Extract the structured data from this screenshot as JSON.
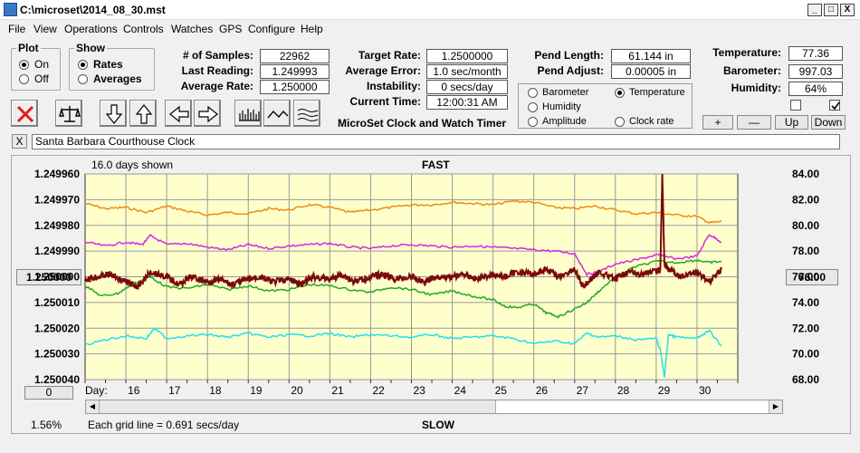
{
  "window": {
    "title": "C:\\microset\\2014_08_30.mst",
    "min": "_",
    "max": "□",
    "close": "X"
  },
  "menu": [
    "File",
    "View",
    "Operations",
    "Controls",
    "Watches",
    "GPS",
    "Configure",
    "Help"
  ],
  "plot_group": {
    "title": "Plot",
    "on": "On",
    "off": "Off",
    "selected": "On"
  },
  "show_group": {
    "title": "Show",
    "rates": "Rates",
    "averages": "Averages",
    "selected": "Rates"
  },
  "stats": {
    "samples_label": "# of Samples:",
    "samples": "22962",
    "last_reading_label": "Last Reading:",
    "last_reading": "1.249993",
    "average_rate_label": "Average Rate:",
    "average_rate": "1.250000",
    "target_rate_label": "Target Rate:",
    "target_rate": "1.2500000",
    "average_error_label": "Average Error:",
    "average_error": "1.0 sec/month",
    "instability_label": "Instability:",
    "instability": "0 secs/day",
    "current_time_label": "Current Time:",
    "current_time": "12:00:31 AM",
    "pend_length_label": "Pend Length:",
    "pend_length": "61.144 in",
    "pend_adjust_label": "Pend Adjust:",
    "pend_adjust": "0.00005 in",
    "temperature_label": "Temperature:",
    "temperature": "77.36",
    "barometer_label": "Barometer:",
    "barometer": "997.03",
    "humidity_label": "Humidity:",
    "humidity": "64%"
  },
  "app_name": "MicroSet Clock and Watch Timer",
  "sensors": {
    "barometer": "Barometer",
    "temperature": "Temperature",
    "humidity": "Humidity",
    "amplitude": "Amplitude",
    "clock_rate": "Clock rate",
    "selected": "Temperature"
  },
  "sensor_buttons": {
    "plus": "+",
    "minus": "—",
    "up": "Up",
    "down": "Down"
  },
  "checkboxes": [
    {
      "checked": false
    },
    {
      "checked": true
    }
  ],
  "clock_name_close": "X",
  "clock_name": "Santa Barbara Courthouse Clock",
  "colors": {
    "plot_bg": "#ffffcc",
    "barometer": "#f08a10",
    "humidity": "#d428e6",
    "temperature": "#22a822",
    "amplitude": "#1ee0f0",
    "rate": "#7a0a0a"
  },
  "chart_info": {
    "days_shown": "16.0 days shown",
    "fast": "FAST",
    "slow": "SLOW",
    "grid_note": "Each grid line = 0.691 secs/day",
    "percent": "1.56%",
    "day_prefix": "Day:",
    "left_button": "1.250000",
    "right_button": "76.00",
    "bottom_button": "0"
  },
  "chart_data": {
    "type": "line",
    "x_label": "Day:",
    "x_ticks": [
      "16",
      "17",
      "18",
      "19",
      "20",
      "21",
      "22",
      "23",
      "24",
      "25",
      "26",
      "27",
      "28",
      "29",
      "30"
    ],
    "x_range": [
      15.0,
      31.0
    ],
    "y_left_ticks": [
      "1.249960",
      "1.249970",
      "1.249980",
      "1.249990",
      "1.250000",
      "1.250010",
      "1.250020",
      "1.250030",
      "1.250040"
    ],
    "y_left_range": [
      1.24996,
      1.25004
    ],
    "y_right_ticks": [
      "84.00",
      "82.00",
      "80.00",
      "78.00",
      "76.00",
      "74.00",
      "72.00",
      "70.00",
      "68.00"
    ],
    "y_right_range": [
      68,
      84
    ],
    "grid": true,
    "series": [
      {
        "name": "Barometer",
        "axis": "right",
        "color": "#f08a10",
        "x": [
          15,
          15.5,
          16,
          16.5,
          17,
          17.5,
          18,
          18.5,
          19,
          19.5,
          20,
          20.5,
          21,
          21.5,
          22,
          22.5,
          23,
          23.5,
          24,
          24.5,
          25,
          25.5,
          26,
          26.5,
          27,
          27.5,
          28,
          28.5,
          29,
          29.5,
          30,
          30.3,
          30.6
        ],
        "y": [
          81.7,
          81.3,
          81.4,
          81.0,
          81.5,
          81.1,
          80.8,
          81.0,
          80.9,
          81.3,
          81.2,
          81.6,
          81.4,
          81.0,
          81.2,
          81.4,
          81.6,
          81.6,
          81.8,
          81.7,
          81.6,
          81.9,
          81.8,
          81.4,
          81.3,
          81.5,
          81.2,
          80.9,
          81.0,
          80.8,
          80.7,
          80.2,
          80.3
        ]
      },
      {
        "name": "Humidity",
        "axis": "right",
        "color": "#d428e6",
        "x": [
          15,
          15.5,
          16,
          16.4,
          16.6,
          17,
          17.5,
          18,
          18.5,
          19,
          19.5,
          20,
          20.5,
          21,
          21.5,
          22,
          22.5,
          23,
          23.5,
          24,
          24.5,
          25,
          25.5,
          26,
          26.5,
          27,
          27.3,
          27.6,
          28,
          28.5,
          29,
          29.5,
          30,
          30.3,
          30.6
        ],
        "y": [
          78.7,
          78.4,
          78.7,
          78.5,
          79.2,
          78.5,
          78.6,
          78.3,
          78.1,
          78.5,
          78.2,
          78.4,
          78.5,
          78.6,
          78.3,
          78.2,
          78.4,
          78.5,
          78.4,
          78.3,
          78.4,
          78.3,
          78.2,
          78.1,
          78.0,
          77.8,
          76.2,
          76.4,
          77.0,
          77.3,
          77.7,
          77.4,
          77.6,
          79.3,
          78.7
        ]
      },
      {
        "name": "Temperature",
        "axis": "right",
        "color": "#22a822",
        "x": [
          15,
          15.4,
          15.8,
          16.2,
          16.6,
          17,
          17.5,
          18,
          18.5,
          19,
          19.5,
          20,
          20.5,
          21,
          21.5,
          22,
          22.5,
          23,
          23.5,
          24,
          24.5,
          25,
          25.3,
          25.6,
          26,
          26.3,
          26.6,
          27,
          27.3,
          27.6,
          28,
          28.5,
          29,
          29.5,
          30,
          30.3,
          30.6
        ],
        "y": [
          75.3,
          74.5,
          74.7,
          75.5,
          76.0,
          75.2,
          75.1,
          75.4,
          75.0,
          75.3,
          74.9,
          75.0,
          75.4,
          75.3,
          75.0,
          74.8,
          75.2,
          75.0,
          74.6,
          74.9,
          74.5,
          74.2,
          73.7,
          73.6,
          73.9,
          73.2,
          72.9,
          73.5,
          74.0,
          74.9,
          76.0,
          76.8,
          77.2,
          77.1,
          77.3,
          77.1,
          77.2
        ]
      },
      {
        "name": "Amplitude",
        "axis": "right",
        "color": "#1ee0f0",
        "x": [
          15,
          15.5,
          16,
          16.5,
          16.7,
          17,
          17.5,
          18,
          18.5,
          19,
          19.5,
          20,
          20.5,
          21,
          21.5,
          22,
          22.5,
          23,
          23.5,
          24,
          24.5,
          25,
          25.5,
          26,
          26.5,
          27,
          27.3,
          27.6,
          28,
          28.5,
          29,
          29.1,
          29.2,
          29.3,
          29.5,
          30,
          30.3,
          30.6
        ],
        "y": [
          70.7,
          71.1,
          71.4,
          71.2,
          72.0,
          71.2,
          71.4,
          71.5,
          71.3,
          71.6,
          71.3,
          71.5,
          71.4,
          71.6,
          71.3,
          71.5,
          71.4,
          71.3,
          71.5,
          71.2,
          71.3,
          71.4,
          71.2,
          70.8,
          71.0,
          70.8,
          71.6,
          71.3,
          71.4,
          71.1,
          71.2,
          70.3,
          68.2,
          71.5,
          71.3,
          71.2,
          71.8,
          70.6
        ]
      },
      {
        "name": "Rate",
        "axis": "left",
        "color": "#7a0a0a",
        "x": [
          15,
          15.3,
          15.6,
          16,
          16.3,
          16.6,
          17,
          17.3,
          17.6,
          18,
          18.3,
          18.6,
          19,
          19.3,
          19.6,
          20,
          20.3,
          20.6,
          21,
          21.3,
          21.6,
          22,
          22.3,
          22.6,
          23,
          23.3,
          23.6,
          24,
          24.3,
          24.6,
          25,
          25.3,
          25.6,
          26,
          26.3,
          26.6,
          27,
          27.2,
          27.4,
          27.6,
          28,
          28.3,
          28.6,
          29,
          29.1,
          29.15,
          29.2,
          29.3,
          29.6,
          30,
          30.3,
          30.6
        ],
        "y": [
          1.250001,
          1.25,
          1.249999,
          1.250002,
          1.250004,
          1.249998,
          1.25,
          1.250003,
          1.25,
          1.250002,
          1.250001,
          1.250003,
          1.250001,
          1.25,
          1.250002,
          1.250001,
          1.250003,
          1.25,
          1.250001,
          1.249999,
          1.250002,
          1.25,
          1.249999,
          1.250001,
          1.25,
          1.250002,
          1.25,
          1.25,
          1.249999,
          1.250001,
          1.249999,
          1.25,
          1.249998,
          1.249999,
          1.249997,
          1.25,
          1.249997,
          1.250004,
          1.250001,
          1.249998,
          1.250001,
          1.249998,
          1.249999,
          1.249998,
          1.249997,
          1.24996,
          1.249995,
          1.249997,
          1.25,
          1.249998,
          1.250002,
          1.249997
        ]
      }
    ]
  }
}
